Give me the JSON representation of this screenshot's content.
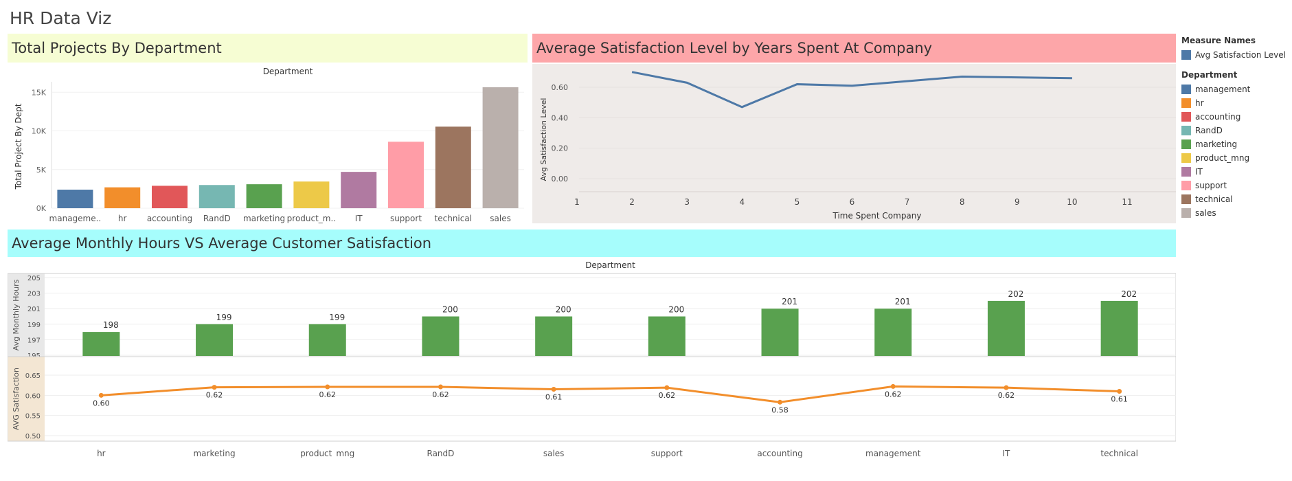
{
  "dashboard": {
    "title": "HR Data Viz"
  },
  "panels": {
    "projects": {
      "title": "Total Projects By Department"
    },
    "satisfaction": {
      "title": "Average Satisfaction Level by Years Spent At Company"
    },
    "hours": {
      "title": "Average Monthly Hours VS Average Customer Satisfaction"
    }
  },
  "legend": {
    "measure_title": "Measure Names",
    "measure_item": {
      "label": "Avg Satisfaction Level",
      "color": "#4e79a7"
    },
    "department_title": "Department",
    "departments": [
      {
        "label": "management",
        "color": "#4e79a7"
      },
      {
        "label": "hr",
        "color": "#f28e2b"
      },
      {
        "label": "accounting",
        "color": "#e15759"
      },
      {
        "label": "RandD",
        "color": "#76b7b2"
      },
      {
        "label": "marketing",
        "color": "#59a14f"
      },
      {
        "label": "product_mng",
        "color": "#edc948"
      },
      {
        "label": "IT",
        "color": "#b07aa1"
      },
      {
        "label": "support",
        "color": "#ff9da7"
      },
      {
        "label": "technical",
        "color": "#9c755f"
      },
      {
        "label": "sales",
        "color": "#bab0ac"
      }
    ]
  },
  "chart_data": [
    {
      "type": "bar",
      "title": "Total Projects By Department",
      "header": "Department",
      "ylabel": "Total Project By Dept",
      "categories": [
        "manageme..",
        "hr",
        "accounting",
        "RandD",
        "marketing",
        "product_m..",
        "IT",
        "support",
        "technical",
        "sales"
      ],
      "values": [
        2400,
        2700,
        2900,
        3000,
        3100,
        3450,
        4700,
        8600,
        10550,
        15650
      ],
      "colors": [
        "#4e79a7",
        "#f28e2b",
        "#e15759",
        "#76b7b2",
        "#59a14f",
        "#edc948",
        "#b07aa1",
        "#ff9da7",
        "#9c755f",
        "#bab0ac"
      ],
      "yticks": [
        "0K",
        "5K",
        "10K",
        "15K"
      ],
      "ylim": [
        0,
        16000
      ]
    },
    {
      "type": "line",
      "title": "Average Satisfaction Level by Years Spent At Company",
      "xlabel": "Time Spent Company",
      "ylabel": "Avg Satisfaction Level",
      "x": [
        2,
        3,
        4,
        5,
        6,
        7,
        8,
        9,
        10
      ],
      "values": [
        0.7,
        0.63,
        0.47,
        0.62,
        0.61,
        0.64,
        0.67,
        0.665,
        0.66
      ],
      "xticks": [
        "1",
        "2",
        "3",
        "4",
        "5",
        "6",
        "7",
        "8",
        "9",
        "10",
        "11"
      ],
      "yticks": [
        "0.00",
        "0.20",
        "0.40",
        "0.60"
      ],
      "xlim": [
        1,
        11
      ],
      "ylim": [
        -0.04,
        0.75
      ],
      "color": "#4e79a7"
    },
    {
      "type": "bar",
      "title": "Average Monthly Hours VS Average Customer Satisfaction",
      "header": "Department",
      "ylabel": "Avg Monthly Hours",
      "categories": [
        "hr",
        "marketing",
        "product_mng",
        "RandD",
        "sales",
        "support",
        "accounting",
        "management",
        "IT",
        "technical"
      ],
      "values": [
        198,
        199,
        199,
        200,
        200,
        200,
        201,
        201,
        202,
        202
      ],
      "labels": [
        "198",
        "199",
        "199",
        "200",
        "200",
        "200",
        "201",
        "201",
        "202",
        "202"
      ],
      "yticks": [
        "195",
        "197",
        "199",
        "201",
        "203",
        "205"
      ],
      "ylim": [
        195,
        205
      ],
      "color": "#59a14f"
    },
    {
      "type": "line",
      "ylabel": "AVG Satisfaction",
      "categories": [
        "hr",
        "marketing",
        "product_mng",
        "RandD",
        "sales",
        "support",
        "accounting",
        "management",
        "IT",
        "technical"
      ],
      "values": [
        0.6,
        0.62,
        0.621,
        0.621,
        0.615,
        0.619,
        0.583,
        0.622,
        0.619,
        0.61
      ],
      "labels": [
        "0.60",
        "0.62",
        "0.62",
        "0.62",
        "0.61",
        "0.62",
        "0.58",
        "0.62",
        "0.62",
        "0.61"
      ],
      "yticks": [
        "0.50",
        "0.55",
        "0.60",
        "0.65"
      ],
      "ylim": [
        0.49,
        0.665
      ],
      "color": "#f28e2b"
    }
  ]
}
